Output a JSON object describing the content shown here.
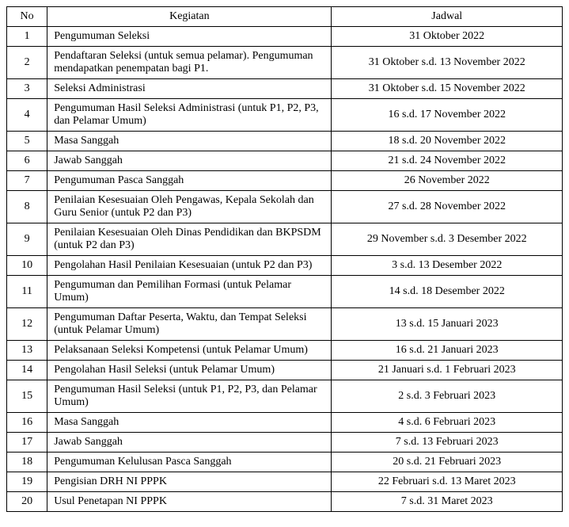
{
  "columns": [
    "No",
    "Kegiatan",
    "Jadwal"
  ],
  "rows": [
    {
      "no": "1",
      "kegiatan": "Pengumuman Seleksi",
      "jadwal": "31 Oktober 2022"
    },
    {
      "no": "2",
      "kegiatan": "Pendaftaran Seleksi (untuk semua pelamar). Pengumuman mendapatkan penempatan bagi P1.",
      "jadwal": "31 Oktober s.d. 13 November 2022"
    },
    {
      "no": "3",
      "kegiatan": "Seleksi Administrasi",
      "jadwal": "31 Oktober s.d. 15 November 2022"
    },
    {
      "no": "4",
      "kegiatan": "Pengumuman Hasil Seleksi Administrasi (untuk P1, P2, P3, dan Pelamar Umum)",
      "jadwal": "16 s.d. 17 November 2022"
    },
    {
      "no": "5",
      "kegiatan": "Masa Sanggah",
      "jadwal": "18 s.d. 20 November 2022"
    },
    {
      "no": "6",
      "kegiatan": "Jawab Sanggah",
      "jadwal": "21 s.d. 24 November 2022"
    },
    {
      "no": "7",
      "kegiatan": "Pengumuman Pasca Sanggah",
      "jadwal": "26 November 2022"
    },
    {
      "no": "8",
      "kegiatan": "Penilaian Kesesuaian Oleh Pengawas, Kepala Sekolah dan Guru Senior (untuk P2 dan P3)",
      "jadwal": "27 s.d. 28 November 2022"
    },
    {
      "no": "9",
      "kegiatan": "Penilaian Kesesuaian Oleh Dinas Pendidikan dan BKPSDM (untuk P2 dan P3)",
      "jadwal": "29 November s.d. 3 Desember 2022"
    },
    {
      "no": "10",
      "kegiatan": "Pengolahan Hasil Penilaian Kesesuaian (untuk P2 dan P3)",
      "jadwal": "3 s.d. 13 Desember 2022"
    },
    {
      "no": "11",
      "kegiatan": "Pengumuman dan Pemilihan Formasi (untuk Pelamar Umum)",
      "jadwal": "14 s.d. 18 Desember 2022"
    },
    {
      "no": "12",
      "kegiatan": "Pengumuman Daftar Peserta, Waktu, dan Tempat Seleksi (untuk Pelamar Umum)",
      "jadwal": "13 s.d. 15 Januari 2023"
    },
    {
      "no": "13",
      "kegiatan": "Pelaksanaan Seleksi Kompetensi (untuk Pelamar Umum)",
      "jadwal": "16 s.d. 21 Januari 2023"
    },
    {
      "no": "14",
      "kegiatan": "Pengolahan Hasil Seleksi (untuk Pelamar Umum)",
      "jadwal": "21 Januari s.d. 1 Februari 2023"
    },
    {
      "no": "15",
      "kegiatan": "Pengumuman Hasil Seleksi (untuk P1, P2, P3, dan Pelamar Umum)",
      "jadwal": "2 s.d. 3 Februari 2023"
    },
    {
      "no": "16",
      "kegiatan": "Masa Sanggah",
      "jadwal": "4 s.d. 6 Februari 2023"
    },
    {
      "no": "17",
      "kegiatan": "Jawab Sanggah",
      "jadwal": "7 s.d. 13 Februari 2023"
    },
    {
      "no": "18",
      "kegiatan": "Pengumuman Kelulusan Pasca Sanggah",
      "jadwal": "20 s.d. 21 Februari 2023"
    },
    {
      "no": "19",
      "kegiatan": "Pengisian DRH NI PPPK",
      "jadwal": "22 Februari s.d. 13 Maret 2023"
    },
    {
      "no": "20",
      "kegiatan": "Usul Penetapan NI PPPK",
      "jadwal": "7 s.d. 31 Maret 2023"
    }
  ]
}
